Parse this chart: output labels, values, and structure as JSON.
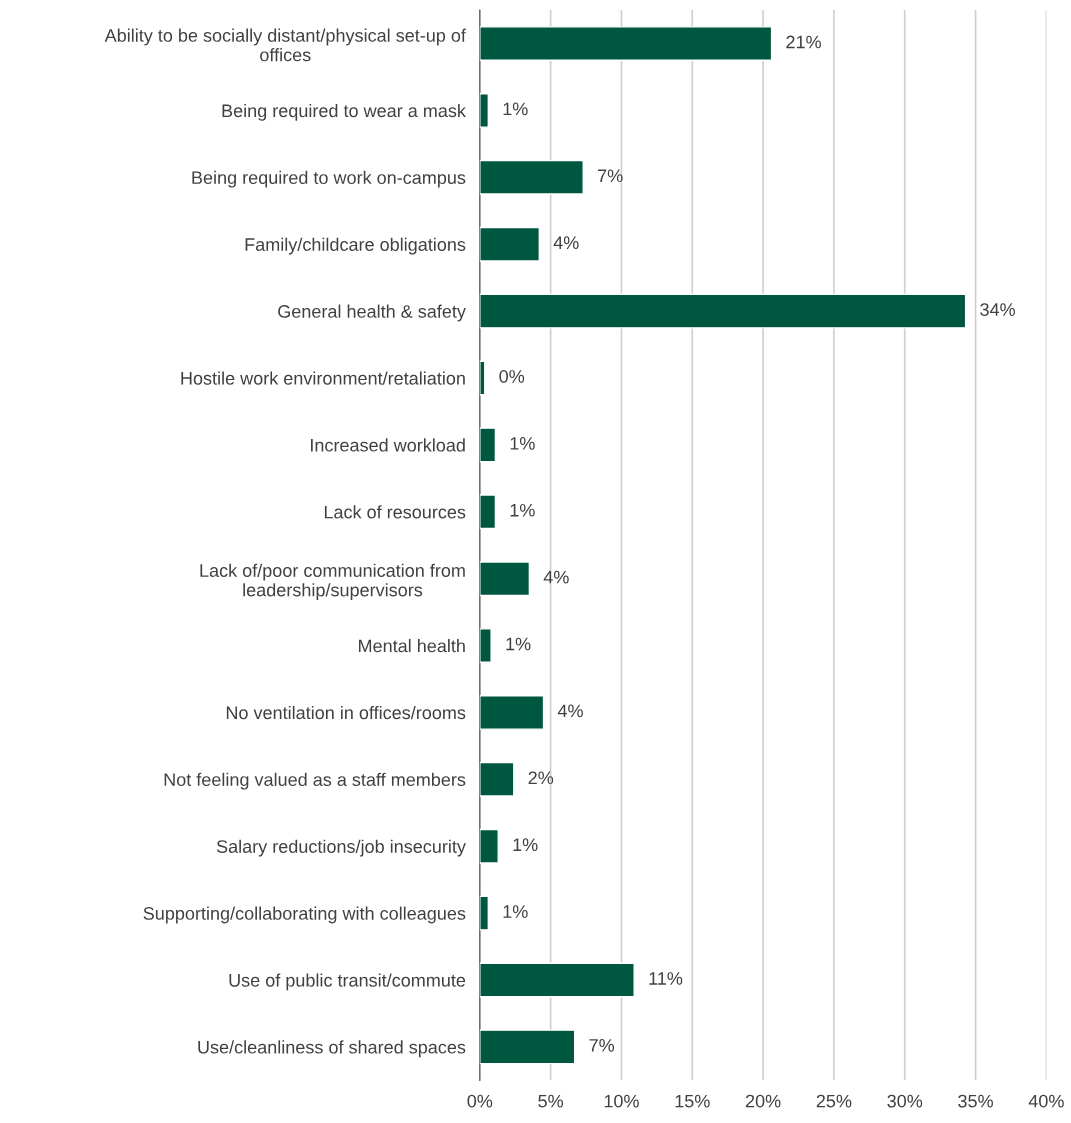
{
  "chart_data": {
    "type": "bar",
    "orientation": "horizontal",
    "categories": [
      "Ability to be socially distant/physical set-up of\noffices",
      "Being required to wear a mask",
      "Being required to work on-campus",
      "Family/childcare obligations",
      "General health & safety",
      "Hostile work environment/retaliation",
      "Increased workload",
      "Lack of resources",
      "Lack of/poor communication from\nleadership/supervisors",
      "Mental health",
      "No ventilation in offices/rooms",
      "Not feeling valued as a staff members",
      "Salary reductions/job insecurity",
      "Supporting/collaborating with colleagues",
      "Use of public transit/commute",
      "Use/cleanliness of shared spaces"
    ],
    "values": [
      20.6,
      0.6,
      7.3,
      4.2,
      34.3,
      0.35,
      1.1,
      1.1,
      3.5,
      0.8,
      4.5,
      2.4,
      1.3,
      0.6,
      10.9,
      6.7
    ],
    "value_labels": [
      "21%",
      "1%",
      "7%",
      "4%",
      "34%",
      "0%",
      "1%",
      "1%",
      "4%",
      "1%",
      "4%",
      "2%",
      "1%",
      "1%",
      "11%",
      "7%"
    ],
    "color": "#00573f",
    "xlim": [
      0,
      40
    ],
    "xticks": [
      {
        "value": 0,
        "label": "0%"
      },
      {
        "value": 5,
        "label": "5%"
      },
      {
        "value": 10,
        "label": "10%"
      },
      {
        "value": 15,
        "label": "15%"
      },
      {
        "value": 20,
        "label": "20%"
      },
      {
        "value": 25,
        "label": "25%"
      },
      {
        "value": 30,
        "label": "30%"
      },
      {
        "value": 35,
        "label": "35%"
      },
      {
        "value": 40,
        "label": "40%"
      }
    ],
    "grid": "x"
  }
}
